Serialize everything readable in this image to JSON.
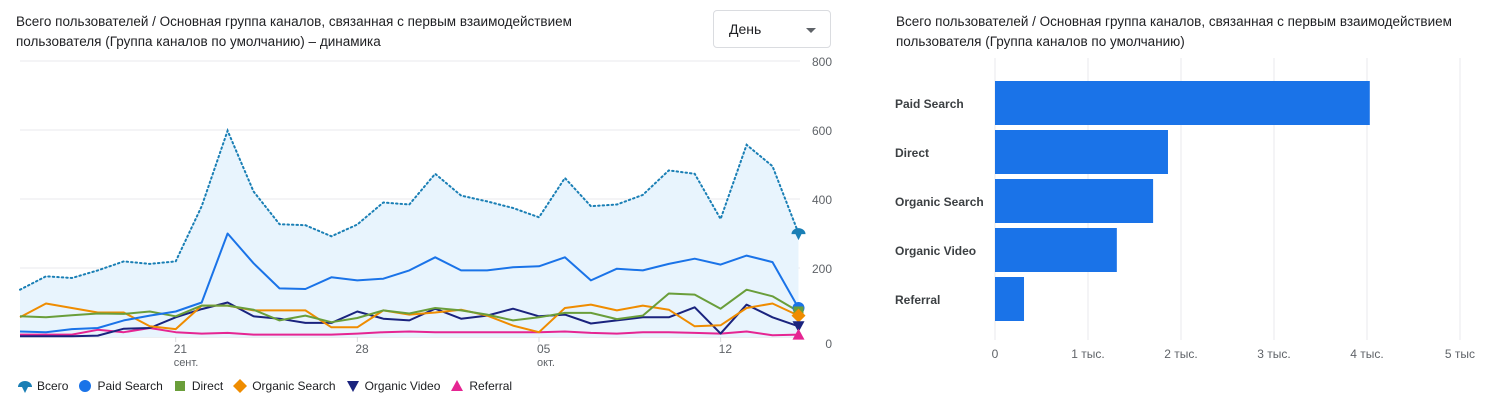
{
  "line_chart": {
    "title": "Всего пользователей / Основная группа каналов, связанная с первым взаимодействием пользователя (Группа каналов по умолчанию) – динамика",
    "period_dropdown": {
      "selected": "День"
    },
    "chart_data": {
      "type": "line",
      "x": [
        "2023-09-15",
        "09-16",
        "09-17",
        "09-18",
        "09-19",
        "09-20",
        "09-21",
        "09-22",
        "09-23",
        "09-24",
        "09-25",
        "09-26",
        "09-27",
        "09-28",
        "09-29",
        "09-30",
        "10-01",
        "10-02",
        "10-03",
        "10-04",
        "10-05",
        "10-06",
        "10-07",
        "10-08",
        "10-09",
        "10-10",
        "10-11",
        "10-12",
        "10-13",
        "10-14",
        "10-15"
      ],
      "x_tick_labels": [
        {
          "label": "21",
          "sub": "сент.",
          "index": 6
        },
        {
          "label": "28",
          "sub": "",
          "index": 13
        },
        {
          "label": "05",
          "sub": "окт.",
          "index": 20
        },
        {
          "label": "12",
          "sub": "",
          "index": 27
        }
      ],
      "y_tick_labels": [
        "0",
        "200",
        "400",
        "600",
        "800"
      ],
      "ylim": [
        0,
        800
      ],
      "y_axis_side": "right",
      "grid": true,
      "legend_position": "bottom",
      "series": [
        {
          "name": "Всего",
          "color": "#1a7fb5",
          "style": "dotted-area",
          "marker": "pin",
          "values": [
            137,
            176,
            171,
            193,
            219,
            212,
            219,
            379,
            598,
            422,
            327,
            324,
            292,
            326,
            390,
            384,
            473,
            410,
            393,
            374,
            347,
            461,
            379,
            384,
            412,
            483,
            473,
            342,
            557,
            495,
            301
          ]
        },
        {
          "name": "Paid Search",
          "color": "#1a73e8",
          "marker": "circle",
          "values": [
            16,
            14,
            23,
            26,
            48,
            62,
            74,
            100,
            300,
            214,
            141,
            139,
            173,
            164,
            169,
            193,
            231,
            193,
            193,
            202,
            205,
            231,
            164,
            198,
            193,
            212,
            227,
            210,
            236,
            217,
            84
          ]
        },
        {
          "name": "Direct",
          "color": "#6a9e3a",
          "marker": "square",
          "values": [
            60,
            57,
            63,
            68,
            67,
            74,
            60,
            91,
            91,
            79,
            48,
            62,
            43,
            55,
            77,
            68,
            84,
            77,
            65,
            48,
            57,
            70,
            70,
            52,
            62,
            126,
            123,
            82,
            137,
            118,
            74
          ]
        },
        {
          "name": "Organic Search",
          "color": "#ef8c00",
          "marker": "diamond",
          "values": [
            57,
            97,
            84,
            71,
            71,
            31,
            23,
            91,
            91,
            77,
            77,
            77,
            28,
            28,
            77,
            65,
            71,
            79,
            62,
            33,
            14,
            84,
            94,
            77,
            91,
            79,
            31,
            34,
            84,
            97,
            62
          ]
        },
        {
          "name": "Organic Video",
          "color": "#1a237e",
          "marker": "triangle-down",
          "values": [
            2,
            2,
            2,
            4,
            24,
            26,
            57,
            81,
            100,
            60,
            53,
            41,
            41,
            74,
            53,
            48,
            82,
            53,
            62,
            82,
            60,
            65,
            39,
            48,
            57,
            57,
            86,
            10,
            94,
            57,
            31
          ]
        },
        {
          "name": "Referral",
          "color": "#e52592",
          "marker": "triangle-up",
          "values": [
            7,
            7,
            7,
            21,
            14,
            26,
            14,
            10,
            12,
            7,
            7,
            7,
            7,
            10,
            14,
            16,
            14,
            14,
            14,
            14,
            14,
            16,
            12,
            10,
            14,
            14,
            12,
            10,
            16,
            5,
            7
          ]
        }
      ]
    }
  },
  "bar_chart": {
    "title": "Всего пользователей / Основная группа каналов, связанная с первым взаимодействием пользователя (Группа каналов по умолчанию)",
    "chart_data": {
      "type": "bar",
      "orientation": "horizontal",
      "categories": [
        "Paid Search",
        "Direct",
        "Organic Search",
        "Organic Video",
        "Referral"
      ],
      "values": [
        4030,
        1860,
        1700,
        1310,
        312
      ],
      "x_tick_labels": [
        "0",
        "1 тыс.",
        "2 тыс.",
        "3 тыс.",
        "4 тыс.",
        "5 тыс"
      ],
      "xlim": [
        0,
        5000
      ],
      "color": "#1a73e8",
      "grid": true
    }
  }
}
